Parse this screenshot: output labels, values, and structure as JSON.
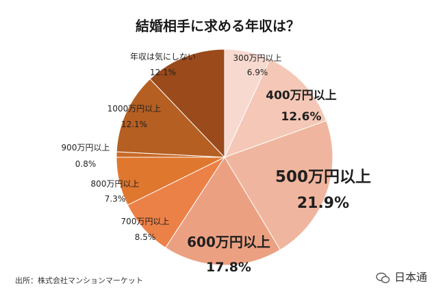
{
  "chart_data": {
    "type": "pie",
    "title": "結婚相手に求める年収は？",
    "slices": [
      {
        "label": "300万円以上",
        "percent_label": "6.9%",
        "value": 6.9,
        "color": "#f7d9cf"
      },
      {
        "label": "400万円以上",
        "percent_label": "12.6%",
        "value": 12.6,
        "color": "#f4c7b6"
      },
      {
        "label": "500万円以上",
        "percent_label": "21.9%",
        "value": 21.9,
        "color": "#f0b59e"
      },
      {
        "label": "600万円以上",
        "percent_label": "17.8%",
        "value": 17.8,
        "color": "#eca082"
      },
      {
        "label": "700万円以上",
        "percent_label": "8.5%",
        "value": 8.5,
        "color": "#ec8147"
      },
      {
        "label": "800万円以上",
        "percent_label": "7.3%",
        "value": 7.3,
        "color": "#e0772f"
      },
      {
        "label": "900万円以上",
        "percent_label": "0.8%",
        "value": 0.8,
        "color": "#c96a26"
      },
      {
        "label": "1000万円以上",
        "percent_label": "12.1%",
        "value": 12.1,
        "color": "#b55f23"
      },
      {
        "label": "年収は気にしない",
        "percent_label": "12.1%",
        "value": 12.1,
        "color": "#9a4a1b"
      }
    ]
  },
  "footer": {
    "source": "出所：株式会社マンションマーケット",
    "watermark": "日本通"
  }
}
